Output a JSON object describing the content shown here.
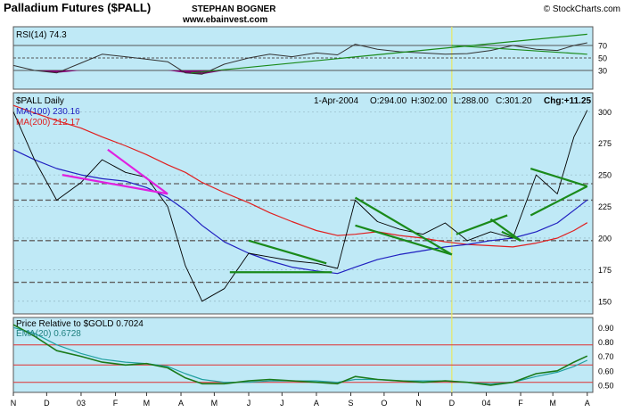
{
  "header": {
    "title": "Palladium Futures ($PALL)",
    "author": "STEPHAN BOGNER",
    "website": "www.ebainvest.com",
    "credit": "© StockCharts.com"
  },
  "colors": {
    "panel_bg": "#bfe9f6",
    "price_line": "#000000",
    "ma100": "#2020c0",
    "ma200": "#e02020",
    "trend_green": "#1a8a1a",
    "trend_magenta": "#e020e0",
    "ema": "#20a0a0",
    "ratio_line": "#1a7a1a",
    "ref_line_red": "#e03030",
    "dashed_grid": "#606060",
    "rsi_fill": "#800070",
    "vmarker": "#e8e860"
  },
  "chart_data": [
    {
      "id": "rsi",
      "type": "line",
      "title": "RSI(14) 74.3",
      "indicator": "RSI(14)",
      "current_value": 74.3,
      "ylim": [
        0,
        100
      ],
      "ticks": [
        30,
        50,
        70
      ],
      "reference_lines": [
        30,
        50,
        70
      ],
      "x_dates": [
        "2002-11-01",
        "2002-11-20",
        "2002-12-10",
        "2003-01-01",
        "2003-01-20",
        "2003-02-10",
        "2003-03-01",
        "2003-03-20",
        "2003-04-05",
        "2003-04-20",
        "2003-05-10",
        "2003-06-01",
        "2003-06-20",
        "2003-07-10",
        "2003-08-01",
        "2003-08-20",
        "2003-09-05",
        "2003-09-25",
        "2003-10-15",
        "2003-11-05",
        "2003-11-25",
        "2003-12-15",
        "2004-01-05",
        "2004-01-25",
        "2004-02-15",
        "2004-03-05",
        "2004-03-20",
        "2004-04-01"
      ],
      "values": [
        38,
        30,
        26,
        42,
        56,
        52,
        48,
        44,
        26,
        24,
        40,
        50,
        56,
        52,
        58,
        55,
        72,
        64,
        60,
        58,
        56,
        57,
        62,
        70,
        64,
        62,
        70,
        74.3
      ],
      "trendlines": [
        {
          "from": [
            "2003-04-10",
            26
          ],
          "to": [
            "2004-04-01",
            88
          ]
        },
        {
          "from": [
            "2003-12-01",
            70
          ],
          "to": [
            "2004-04-01",
            56
          ]
        }
      ]
    },
    {
      "id": "price",
      "type": "line",
      "title": "$PALL Daily",
      "legend": [
        {
          "label": "MA(100) 230.16",
          "color": "#2020c0"
        },
        {
          "label": "MA(200) 212.17",
          "color": "#e02020"
        }
      ],
      "info": {
        "date": "1-Apr-2004",
        "open_label": "O:294.00",
        "high_label": "H:302.00",
        "low_label": "L:288.00",
        "close_label": "C:301.20",
        "change_label": "Chg:+11.25"
      },
      "ylim": [
        140,
        315
      ],
      "ticks": [
        150,
        175,
        200,
        225,
        250,
        275,
        300
      ],
      "dashed_levels": [
        165,
        198,
        230,
        243
      ],
      "x_dates": [
        "2002-11-01",
        "2002-11-20",
        "2002-12-10",
        "2003-01-01",
        "2003-01-20",
        "2003-02-10",
        "2003-03-01",
        "2003-03-20",
        "2003-04-05",
        "2003-04-20",
        "2003-05-10",
        "2003-06-01",
        "2003-06-20",
        "2003-07-10",
        "2003-08-01",
        "2003-08-20",
        "2003-09-05",
        "2003-09-25",
        "2003-10-15",
        "2003-11-05",
        "2003-11-25",
        "2003-12-15",
        "2004-01-05",
        "2004-01-25",
        "2004-02-15",
        "2004-03-05",
        "2004-03-20",
        "2004-04-01"
      ],
      "values": [
        300,
        262,
        230,
        244,
        262,
        252,
        248,
        225,
        178,
        150,
        160,
        188,
        185,
        182,
        180,
        176,
        230,
        213,
        207,
        203,
        212,
        198,
        205,
        200,
        250,
        235,
        280,
        301.2
      ],
      "ma100": [
        270,
        262,
        255,
        250,
        247,
        245,
        240,
        232,
        222,
        210,
        197,
        188,
        182,
        177,
        174,
        172,
        177,
        183,
        187,
        190,
        193,
        195,
        198,
        200,
        205,
        212,
        222,
        230.16
      ],
      "ma200": [
        305,
        299,
        293,
        287,
        280,
        273,
        266,
        258,
        252,
        244,
        236,
        228,
        220,
        213,
        206,
        202,
        203,
        205,
        202,
        200,
        197,
        195,
        194,
        193,
        196,
        200,
        206,
        212.17
      ],
      "trendlines": [
        {
          "color": "#e020e0",
          "from": [
            "2002-12-15",
            250
          ],
          "to": [
            "2003-03-20",
            235
          ]
        },
        {
          "color": "#e020e0",
          "from": [
            "2003-01-25",
            270
          ],
          "to": [
            "2003-03-20",
            235
          ]
        },
        {
          "color": "#1a8a1a",
          "from": [
            "2003-06-01",
            198
          ],
          "to": [
            "2003-08-10",
            180
          ]
        },
        {
          "color": "#1a8a1a",
          "from": [
            "2003-05-15",
            173
          ],
          "to": [
            "2003-08-15",
            173
          ]
        },
        {
          "color": "#1a8a1a",
          "from": [
            "2003-09-05",
            232
          ],
          "to": [
            "2003-12-01",
            187
          ]
        },
        {
          "color": "#1a8a1a",
          "from": [
            "2003-09-05",
            210
          ],
          "to": [
            "2003-12-01",
            187
          ]
        },
        {
          "color": "#1a8a1a",
          "from": [
            "2003-12-05",
            203
          ],
          "to": [
            "2004-01-20",
            218
          ]
        },
        {
          "color": "#1a8a1a",
          "from": [
            "2004-01-05",
            215
          ],
          "to": [
            "2004-02-01",
            198
          ]
        },
        {
          "color": "#1a8a1a",
          "from": [
            "2004-01-15",
            205
          ],
          "to": [
            "2004-02-01",
            198
          ]
        },
        {
          "color": "#1a8a1a",
          "from": [
            "2004-02-10",
            255
          ],
          "to": [
            "2004-04-01",
            241
          ]
        },
        {
          "color": "#1a8a1a",
          "from": [
            "2004-02-10",
            218
          ],
          "to": [
            "2004-04-01",
            241
          ]
        }
      ]
    },
    {
      "id": "ratio",
      "type": "line",
      "title": "Price Relative to $GOLD 0.7024",
      "legend": [
        {
          "label": "EMA(20) 0.6728",
          "color": "#20a0a0"
        }
      ],
      "current_value": 0.7024,
      "ylim": [
        0.45,
        0.97
      ],
      "ticks": [
        0.5,
        0.6,
        0.7,
        0.8,
        0.9
      ],
      "tick_labels": [
        "0.50",
        "0.60",
        "0.70",
        "0.80",
        "0.90"
      ],
      "reference_lines_red": [
        0.52,
        0.64,
        0.78
      ],
      "x_dates": [
        "2002-11-01",
        "2002-11-20",
        "2002-12-10",
        "2003-01-01",
        "2003-01-20",
        "2003-02-10",
        "2003-03-01",
        "2003-03-20",
        "2003-04-05",
        "2003-04-20",
        "2003-05-10",
        "2003-06-01",
        "2003-06-20",
        "2003-07-10",
        "2003-08-01",
        "2003-08-20",
        "2003-09-05",
        "2003-09-25",
        "2003-10-15",
        "2003-11-05",
        "2003-11-25",
        "2003-12-15",
        "2004-01-05",
        "2004-01-25",
        "2004-02-15",
        "2004-03-05",
        "2004-03-20",
        "2004-04-01"
      ],
      "values": [
        0.92,
        0.84,
        0.74,
        0.7,
        0.66,
        0.64,
        0.65,
        0.62,
        0.55,
        0.51,
        0.51,
        0.53,
        0.54,
        0.53,
        0.52,
        0.51,
        0.56,
        0.54,
        0.53,
        0.52,
        0.53,
        0.52,
        0.5,
        0.52,
        0.58,
        0.6,
        0.66,
        0.7024
      ],
      "ema": [
        0.9,
        0.86,
        0.78,
        0.72,
        0.68,
        0.66,
        0.65,
        0.63,
        0.58,
        0.54,
        0.52,
        0.52,
        0.53,
        0.53,
        0.53,
        0.52,
        0.54,
        0.54,
        0.53,
        0.53,
        0.53,
        0.52,
        0.51,
        0.52,
        0.56,
        0.59,
        0.63,
        0.6728
      ]
    }
  ],
  "x_axis": {
    "start": "2002-11-01",
    "end": "2004-04-06",
    "labels": [
      {
        "date": "2002-11-01",
        "text": "N"
      },
      {
        "date": "2002-12-01",
        "text": "D"
      },
      {
        "date": "2003-01-01",
        "text": "03"
      },
      {
        "date": "2003-02-01",
        "text": "F"
      },
      {
        "date": "2003-03-01",
        "text": "M"
      },
      {
        "date": "2003-04-01",
        "text": "A"
      },
      {
        "date": "2003-05-01",
        "text": "M"
      },
      {
        "date": "2003-06-01",
        "text": "J"
      },
      {
        "date": "2003-07-01",
        "text": "J"
      },
      {
        "date": "2003-08-01",
        "text": "A"
      },
      {
        "date": "2003-09-01",
        "text": "S"
      },
      {
        "date": "2003-10-01",
        "text": "O"
      },
      {
        "date": "2003-11-01",
        "text": "N"
      },
      {
        "date": "2003-12-01",
        "text": "D"
      },
      {
        "date": "2004-01-01",
        "text": "04"
      },
      {
        "date": "2004-02-01",
        "text": "F"
      },
      {
        "date": "2004-03-01",
        "text": "M"
      },
      {
        "date": "2004-04-01",
        "text": "A"
      }
    ],
    "highlight_date": "2003-12-01"
  }
}
